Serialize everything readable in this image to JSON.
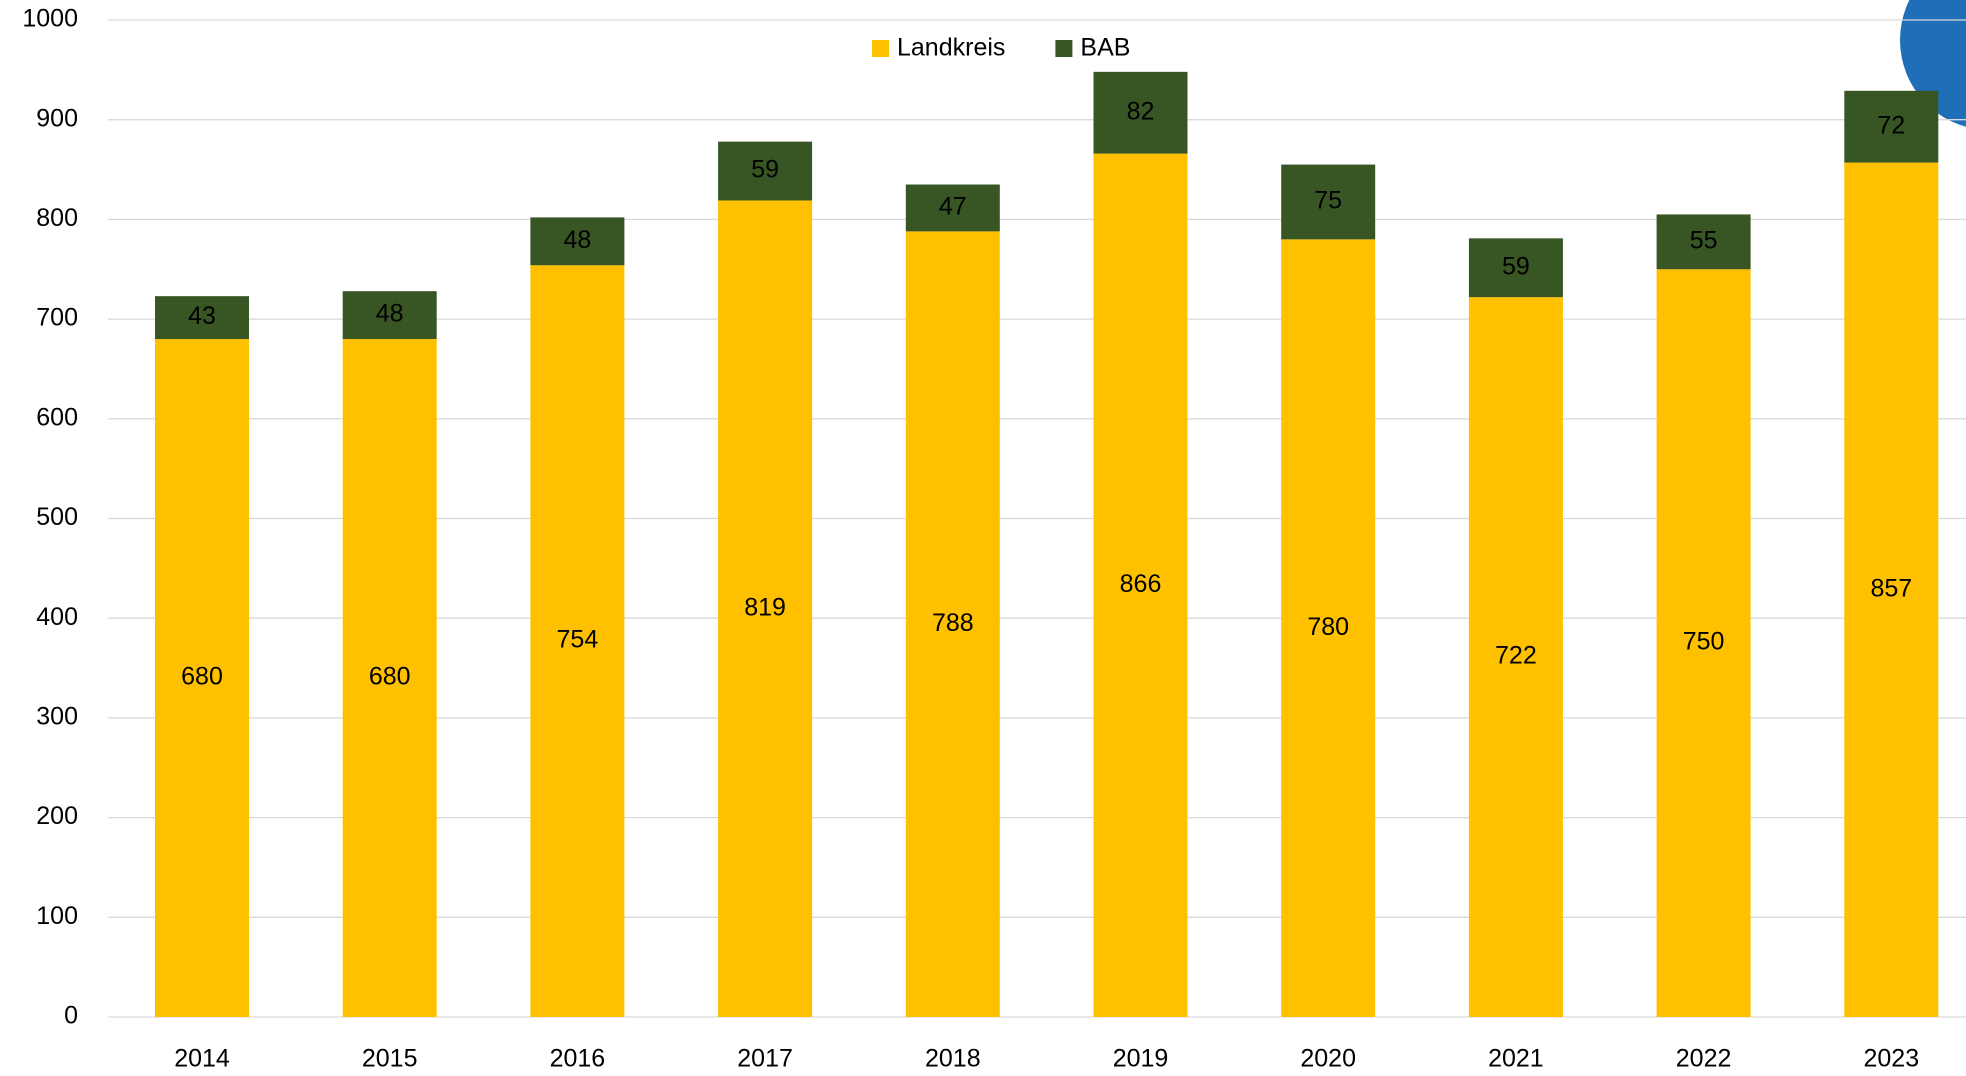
{
  "chart_data": {
    "type": "stacked_bar",
    "categories": [
      "2014",
      "2015",
      "2016",
      "2017",
      "2018",
      "2019",
      "2020",
      "2021",
      "2022",
      "2023"
    ],
    "series": [
      {
        "name": "Landkreis",
        "color": "#ffc000",
        "label_color": "#000000",
        "values": [
          680,
          680,
          754,
          819,
          788,
          866,
          780,
          722,
          750,
          857
        ]
      },
      {
        "name": "BAB",
        "color": "#375623",
        "label_color": "#ffffff",
        "values": [
          43,
          48,
          48,
          59,
          47,
          82,
          75,
          59,
          55,
          72
        ]
      }
    ],
    "ylim": [
      0,
      1000
    ],
    "yticks": [
      0,
      100,
      200,
      300,
      400,
      500,
      600,
      700,
      800,
      900,
      1000
    ],
    "grid": true,
    "legend": "top"
  }
}
